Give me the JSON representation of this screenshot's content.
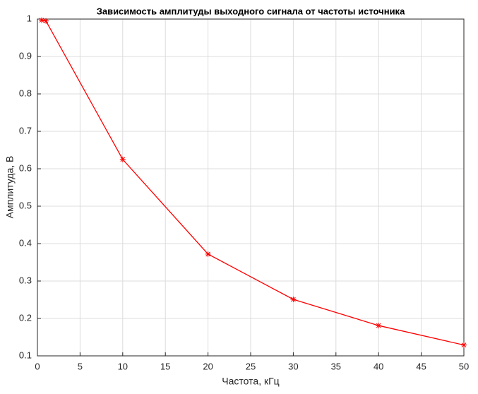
{
  "chart_data": {
    "type": "line",
    "title": "Зависимость амплитуды выходного сигнала от частоты источника",
    "x_label": "Частота, кГц",
    "y_label": "Амплитуда, В",
    "x": [
      0.5,
      1,
      10,
      20,
      30,
      40,
      50
    ],
    "values": [
      0.997,
      0.995,
      0.625,
      0.372,
      0.251,
      0.181,
      0.129
    ],
    "color": "#ff0000",
    "marker": "star",
    "xlim": [
      0,
      50
    ],
    "xticks": [
      0,
      5,
      10,
      15,
      20,
      25,
      30,
      35,
      40,
      45,
      50
    ],
    "ylim": [
      0.1,
      1
    ],
    "yticks": [
      0.1,
      0.2,
      0.3,
      0.4,
      0.5,
      0.6,
      0.7,
      0.8,
      0.9,
      1
    ],
    "grid": true
  }
}
